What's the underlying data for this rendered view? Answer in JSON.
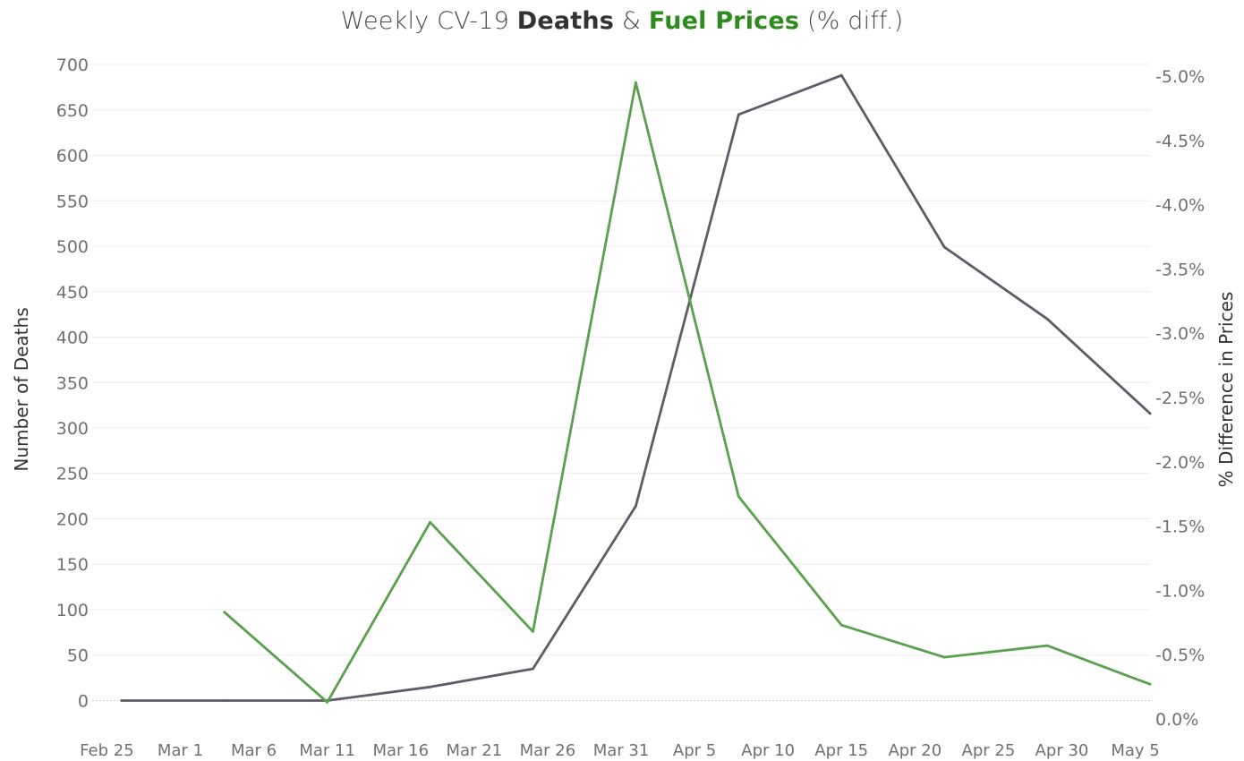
{
  "title": {
    "part1": "Weekly CV-19 ",
    "deaths": "Deaths",
    "amp": " & ",
    "fuel": "Fuel Prices",
    "part2": " (% diff.)"
  },
  "colors": {
    "deaths": "#5c5d66",
    "fuel": "#5aa04f",
    "fuel_title": "#2e8b1e",
    "deaths_title": "#333333",
    "grid": "#ececec",
    "zero_line": "#cfcfcf",
    "tick_text": "#707070"
  },
  "chart_data": {
    "type": "line",
    "title": "Weekly CV-19 Deaths & Fuel Prices (% diff.)",
    "x_tick_labels": [
      "Feb 25",
      "Mar 1",
      "Mar 6",
      "Mar 11",
      "Mar 16",
      "Mar 21",
      "Mar 26",
      "Mar 31",
      "Apr 5",
      "Apr 10",
      "Apr 15",
      "Apr 20",
      "Apr 25",
      "Apr 30",
      "May 5"
    ],
    "x_tick_dates": [
      "2020-02-25",
      "2020-03-01",
      "2020-03-06",
      "2020-03-11",
      "2020-03-16",
      "2020-03-21",
      "2020-03-26",
      "2020-03-31",
      "2020-04-05",
      "2020-04-10",
      "2020-04-15",
      "2020-04-20",
      "2020-04-25",
      "2020-04-30",
      "2020-05-05"
    ],
    "xlim": [
      "2020-02-24",
      "2020-05-06"
    ],
    "y_left": {
      "label": "Number of Deaths",
      "ticks": [
        0,
        50,
        100,
        150,
        200,
        250,
        300,
        350,
        400,
        450,
        500,
        550,
        600,
        650,
        700
      ],
      "range": [
        -35,
        702
      ]
    },
    "y_right": {
      "label": "% Difference in Prices",
      "ticks": [
        0.0,
        -0.5,
        -1.0,
        -1.5,
        -2.0,
        -2.5,
        -3.0,
        -3.5,
        -4.0,
        -4.5,
        -5.0
      ],
      "tick_labels": [
        "0.0%",
        "-0.5%",
        "-1.0%",
        "-1.5%",
        "-2.0%",
        "-2.5%",
        "-3.0%",
        "-3.5%",
        "-4.0%",
        "-4.5%",
        "-5.0%"
      ],
      "range": [
        0.0,
        -5.0
      ],
      "reversed": true
    },
    "grid": true,
    "series": [
      {
        "name": "Deaths",
        "axis": "left",
        "x": [
          "2020-02-26",
          "2020-03-04",
          "2020-03-11",
          "2020-03-18",
          "2020-03-25",
          "2020-04-01",
          "2020-04-08",
          "2020-04-15",
          "2020-04-22",
          "2020-04-29",
          "2020-05-06"
        ],
        "values": [
          0,
          0,
          0,
          15,
          35,
          214,
          645,
          688,
          499,
          420,
          316
        ]
      },
      {
        "name": "Fuel Prices",
        "axis": "right",
        "x": [
          "2020-03-04",
          "2020-03-11",
          "2020-03-18",
          "2020-03-25",
          "2020-04-01",
          "2020-04-08",
          "2020-04-15",
          "2020-04-22",
          "2020-04-29",
          "2020-05-06"
        ],
        "values": [
          -0.83,
          -0.13,
          -1.53,
          -0.68,
          -4.95,
          -1.73,
          -0.73,
          -0.48,
          -0.57,
          -0.27
        ]
      }
    ]
  }
}
